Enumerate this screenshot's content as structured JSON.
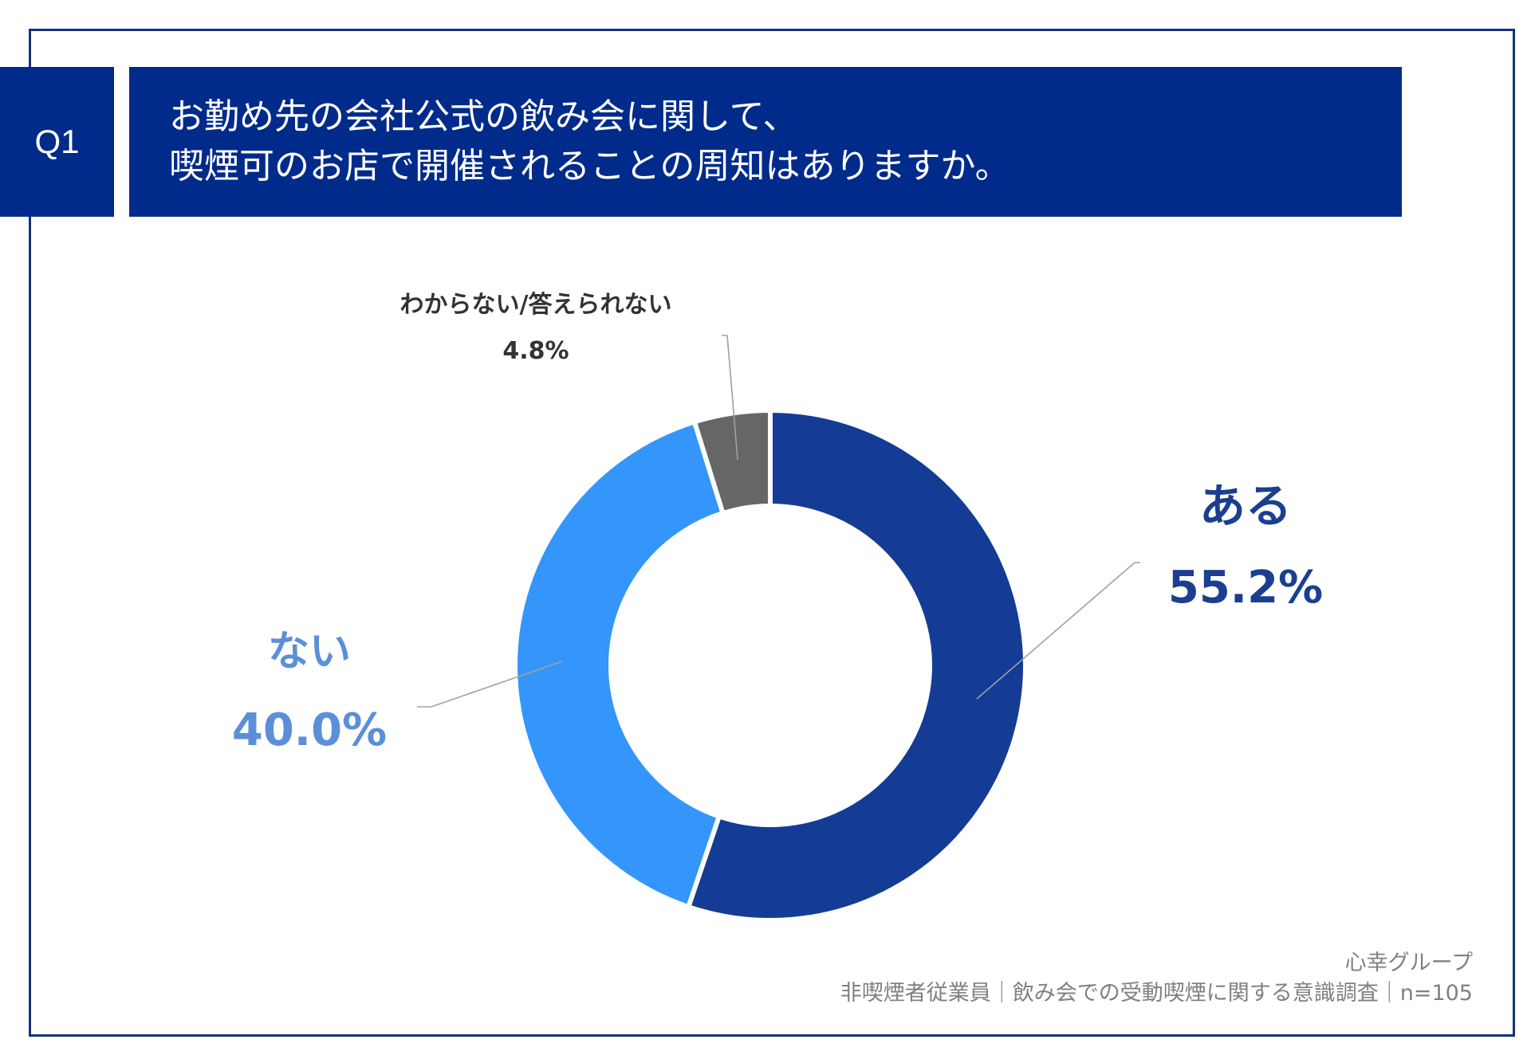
{
  "header": {
    "badge": "Q1",
    "title_line1": "お勤め先の会社公式の飲み会に関して、",
    "title_line2": "喫煙可のお店で開催されることの周知はありますか。"
  },
  "footer": {
    "source": "心幸グループ",
    "survey": "非喫煙者従業員｜飲み会での受動喫煙に関する意識調査｜n=105"
  },
  "chart_data": {
    "type": "pie",
    "variant": "donut",
    "title": "お勤め先の会社公式の飲み会に関して、喫煙可のお店で開催されることの周知はありますか。",
    "start": "top",
    "direction": "clockwise",
    "slices": [
      {
        "label": "ある",
        "value": 55.2,
        "value_label": "55.2%",
        "color": "#143c94",
        "label_color": "#1a3f8f"
      },
      {
        "label": "ない",
        "value": 40.0,
        "value_label": "40.0%",
        "color": "#3496fb",
        "label_color": "#5b8fd8"
      },
      {
        "label": "わからない/答えられない",
        "value": 4.8,
        "value_label": "4.8%",
        "color": "#666666",
        "label_color": "#333333"
      }
    ]
  },
  "colors": {
    "header_bg": "#002b8a",
    "frame": "#14307e",
    "leader_line": "#a0a0a0"
  }
}
